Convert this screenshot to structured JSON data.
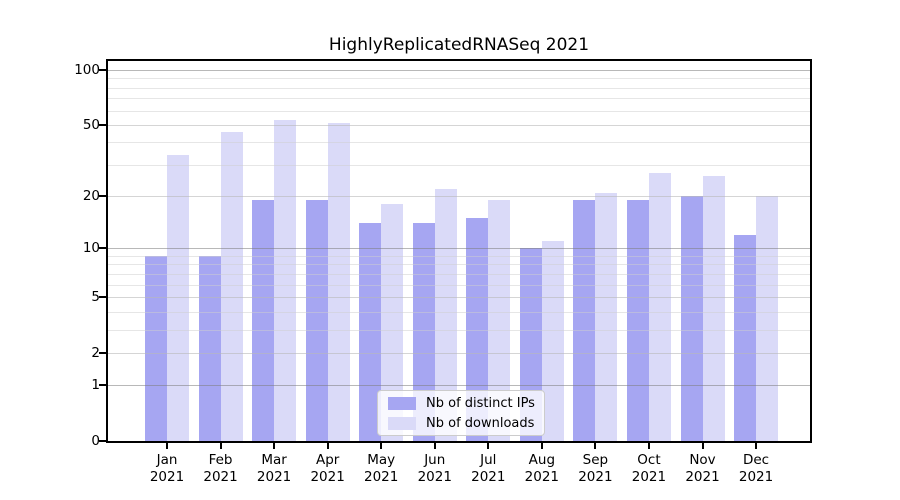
{
  "title": "HighlyReplicatedRNASeq 2021",
  "chart_data": {
    "type": "bar",
    "title": "HighlyReplicatedRNASeq 2021",
    "categories": [
      "Jan",
      "Feb",
      "Mar",
      "Apr",
      "May",
      "Jun",
      "Jul",
      "Aug",
      "Sep",
      "Oct",
      "Nov",
      "Dec"
    ],
    "category_year": "2021",
    "series": [
      {
        "name": "Nb of distinct IPs",
        "color": "#a6a6f2",
        "values": [
          9,
          9,
          19,
          19,
          14,
          14,
          15,
          10,
          19,
          19,
          20,
          12
        ]
      },
      {
        "name": "Nb of downloads",
        "color": "#dadaf8",
        "values": [
          34,
          46,
          53,
          51,
          18,
          22,
          19,
          11,
          21,
          27,
          26,
          20
        ]
      }
    ],
    "yscale": "log1p",
    "ylim": [
      0,
      112
    ],
    "yticks": [
      100,
      50,
      20,
      10,
      5,
      2,
      1,
      0
    ],
    "minor_yticks": [
      3,
      4,
      6,
      7,
      8,
      9,
      30,
      40,
      60,
      70,
      80,
      90
    ],
    "decade_gridlines": [
      1,
      10,
      100
    ],
    "grid": true,
    "legend_position": "lower center"
  }
}
